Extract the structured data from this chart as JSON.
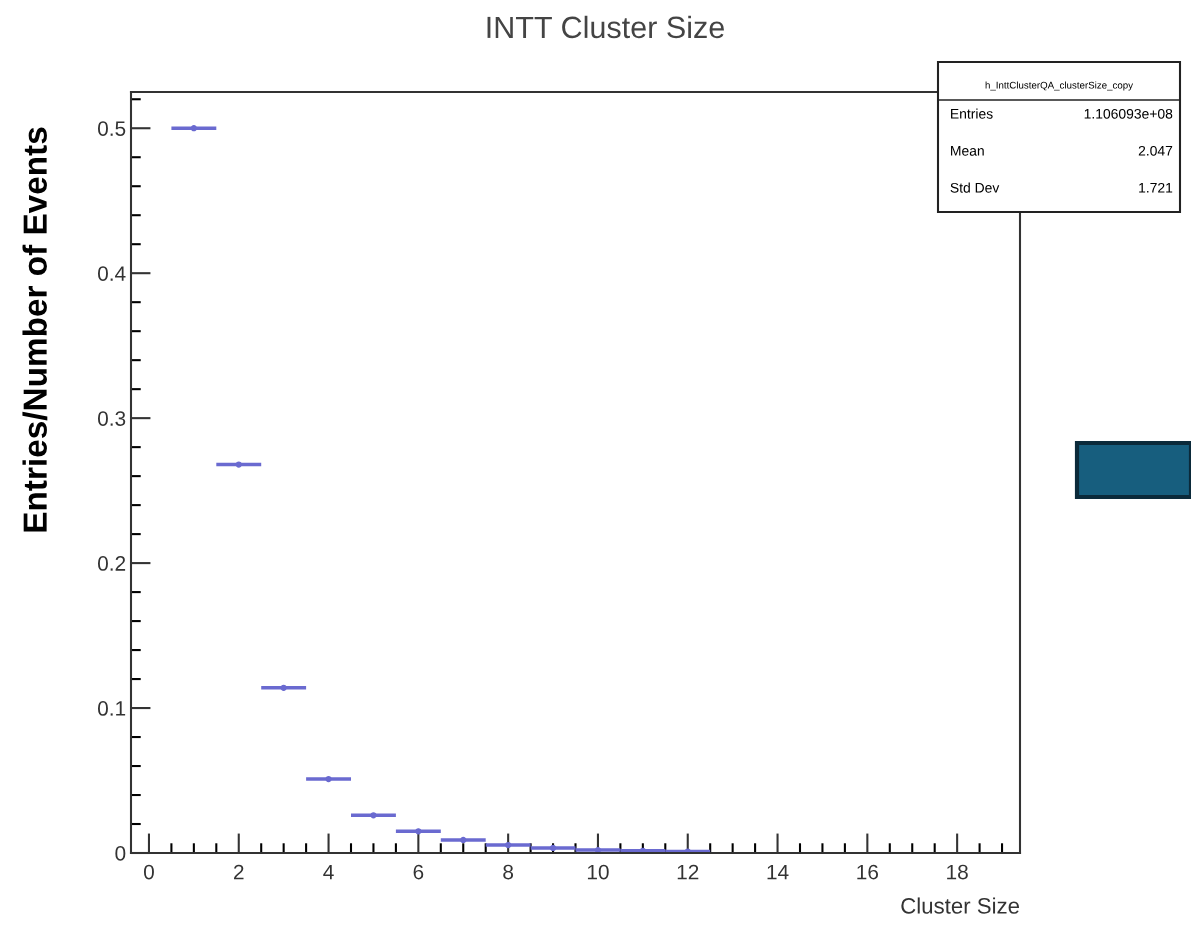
{
  "chart_data": {
    "type": "scatter",
    "title": "INTT Cluster Size",
    "xlabel": "Cluster Size",
    "ylabel": "Entries/Number of Events",
    "x": [
      1,
      2,
      3,
      4,
      5,
      6,
      7,
      8,
      9,
      10,
      11,
      12
    ],
    "xerrors": [
      0.5,
      0.5,
      0.5,
      0.5,
      0.5,
      0.5,
      0.5,
      0.5,
      0.5,
      0.5,
      0.5,
      0.5
    ],
    "marker": "circle",
    "values": [
      0.5,
      0.268,
      0.114,
      0.051,
      0.026,
      0.015,
      0.009,
      0.0055,
      0.0035,
      0.002,
      0.0015,
      0.001
    ],
    "color": "#6a6ad0",
    "xlim": [
      -0.4,
      19.4
    ],
    "xticks": [
      0,
      2,
      4,
      6,
      8,
      10,
      12,
      14,
      16,
      18,
      {
        "value": 0.5,
        "label": null
      },
      {
        "value": 1,
        "label": null
      },
      {
        "value": 1.5,
        "label": null
      },
      {
        "value": 2.5,
        "label": null
      },
      {
        "value": 3,
        "label": null
      },
      {
        "value": 3.5,
        "label": null
      },
      {
        "value": 4.5,
        "label": null
      },
      {
        "value": 5,
        "label": null
      },
      {
        "value": 5.5,
        "label": null
      },
      {
        "value": 6.5,
        "label": null
      },
      {
        "value": 7,
        "label": null
      },
      {
        "value": 7.5,
        "label": null
      },
      {
        "value": 8.5,
        "label": null
      },
      {
        "value": 9,
        "label": null
      },
      {
        "value": 9.5,
        "label": null
      },
      {
        "value": 10.5,
        "label": null
      },
      {
        "value": 11,
        "label": null
      },
      {
        "value": 11.5,
        "label": null
      },
      {
        "value": 12.5,
        "label": null
      },
      {
        "value": 13,
        "label": null
      },
      {
        "value": 13.5,
        "label": null
      },
      {
        "value": 14.5,
        "label": null
      },
      {
        "value": 15,
        "label": null
      },
      {
        "value": 15.5,
        "label": null
      },
      {
        "value": 16.5,
        "label": null
      },
      {
        "value": 17,
        "label": null
      },
      {
        "value": 17.5,
        "label": null
      },
      {
        "value": 18.5,
        "label": null
      },
      {
        "value": 19,
        "label": null
      }
    ],
    "ylim": [
      0,
      0.525
    ],
    "yticks": [
      0,
      0.1,
      0.2,
      0.3,
      0.4,
      0.5,
      {
        "value": 0.02,
        "label": null
      },
      {
        "value": 0.04,
        "label": null
      },
      {
        "value": 0.06,
        "label": null
      },
      {
        "value": 0.08,
        "label": null
      },
      {
        "value": 0.12,
        "label": null
      },
      {
        "value": 0.14,
        "label": null
      },
      {
        "value": 0.16,
        "label": null
      },
      {
        "value": 0.18,
        "label": null
      },
      {
        "value": 0.22,
        "label": null
      },
      {
        "value": 0.24,
        "label": null
      },
      {
        "value": 0.26,
        "label": null
      },
      {
        "value": 0.28,
        "label": null
      },
      {
        "value": 0.32,
        "label": null
      },
      {
        "value": 0.34,
        "label": null
      },
      {
        "value": 0.36,
        "label": null
      },
      {
        "value": 0.38,
        "label": null
      },
      {
        "value": 0.42,
        "label": null
      },
      {
        "value": 0.44,
        "label": null
      },
      {
        "value": 0.46,
        "label": null
      },
      {
        "value": 0.48,
        "label": null
      },
      {
        "value": 0.52,
        "label": null
      }
    ],
    "grid": false,
    "annotations": [
      "h_InttClusterQA_clusterSize_copy",
      "Entries",
      "1.106093e+08",
      "Mean",
      "2.047",
      "Std Dev",
      "1.721"
    ]
  }
}
